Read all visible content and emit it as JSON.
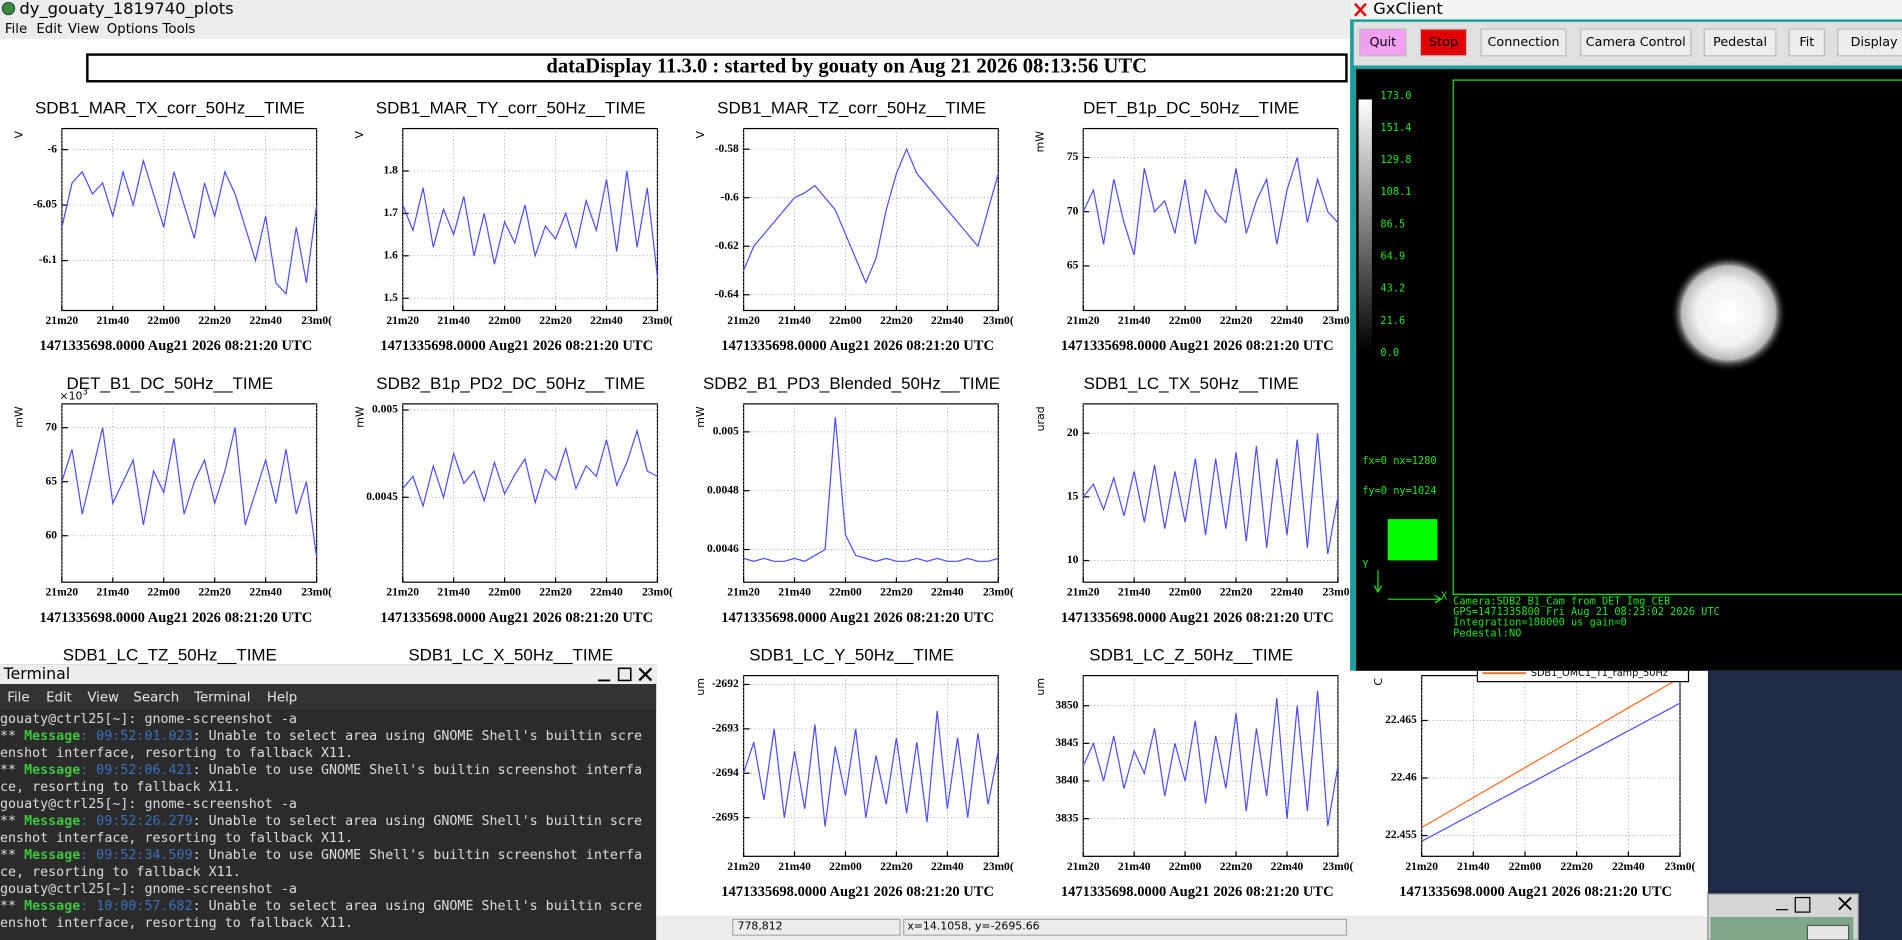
{
  "main": {
    "title": "dy_gouaty_1819740_plots",
    "menu": [
      "File",
      "Edit",
      "View",
      "Options",
      "Tools"
    ],
    "header": "dataDisplay 11.3.0 : started by gouaty on Aug 21 2026 08:13:56 UTC",
    "footer": "1471335698.0000 Aug21 2026 08:21:20 UTC",
    "xlim": [
      1280,
      1380
    ],
    "xticks": [
      {
        "value": 1280,
        "label": "21m20"
      },
      {
        "value": 1300,
        "label": "21m40"
      },
      {
        "value": 1320,
        "label": "22m00"
      },
      {
        "value": 1340,
        "label": "22m20"
      },
      {
        "value": 1360,
        "label": "22m40"
      },
      {
        "value": 1380,
        "label": "23m0("
      }
    ],
    "x": [
      1280,
      1284,
      1288,
      1292,
      1296,
      1300,
      1304,
      1308,
      1312,
      1316,
      1320,
      1324,
      1328,
      1332,
      1336,
      1340,
      1344,
      1348,
      1352,
      1356,
      1360,
      1364,
      1368,
      1372,
      1376,
      1380
    ],
    "plots": [
      {
        "title": "SDB1_MAR_TX_corr_50Hz__TIME",
        "ylabel": "V",
        "ylim": [
          -6.145,
          -5.981
        ],
        "yticks": [
          -6,
          -6.05,
          -6.1
        ],
        "color": "#4d4dff",
        "values": [
          -6.07,
          -6.03,
          -6.02,
          -6.04,
          -6.03,
          -6.06,
          -6.02,
          -6.05,
          -6.01,
          -6.04,
          -6.07,
          -6.02,
          -6.05,
          -6.08,
          -6.03,
          -6.06,
          -6.02,
          -6.04,
          -6.07,
          -6.1,
          -6.06,
          -6.12,
          -6.13,
          -6.07,
          -6.12,
          -6.05
        ]
      },
      {
        "title": "SDB1_MAR_TY_corr_50Hz__TIME",
        "ylabel": "V",
        "ylim": [
          1.471,
          1.9
        ],
        "yticks": [
          1.8,
          1.7,
          1.6,
          1.5
        ],
        "color": "#4d4dff",
        "values": [
          1.72,
          1.66,
          1.76,
          1.62,
          1.71,
          1.65,
          1.74,
          1.6,
          1.7,
          1.58,
          1.68,
          1.63,
          1.72,
          1.6,
          1.67,
          1.64,
          1.7,
          1.62,
          1.73,
          1.66,
          1.78,
          1.61,
          1.8,
          1.62,
          1.76,
          1.55
        ]
      },
      {
        "title": "SDB1_MAR_TZ_corr_50Hz__TIME",
        "ylabel": "V",
        "ylim": [
          -0.6465,
          -0.5715
        ],
        "yticks": [
          -0.58,
          -0.6,
          -0.62,
          -0.64
        ],
        "color": "#4d4dff",
        "values": [
          -0.63,
          -0.62,
          -0.615,
          -0.61,
          -0.605,
          -0.6,
          -0.598,
          -0.595,
          -0.6,
          -0.605,
          -0.615,
          -0.625,
          -0.635,
          -0.625,
          -0.605,
          -0.59,
          -0.58,
          -0.59,
          -0.595,
          -0.6,
          -0.605,
          -0.61,
          -0.615,
          -0.62,
          -0.605,
          -0.59
        ]
      },
      {
        "title": "DET_B1p_DC_50Hz__TIME",
        "ylabel": "mW",
        "ylim": [
          60.89,
          77.67
        ],
        "yticks": [
          75,
          70,
          65
        ],
        "color": "#4d4dff",
        "values": [
          70,
          72,
          67,
          73,
          69,
          66,
          74,
          70,
          71,
          68,
          73,
          67,
          72,
          70,
          69,
          74,
          68,
          71,
          73,
          67,
          72,
          75,
          69,
          73,
          70,
          69
        ]
      },
      {
        "title": "DET_B1_DC_50Hz__TIME",
        "ylabel": "mW",
        "multiplier": "×10",
        "exponent": "3",
        "ylim": [
          55.7,
          72.2
        ],
        "yticks": [
          70,
          65,
          60
        ],
        "color": "#4d4dff",
        "values": [
          65,
          68,
          62,
          66,
          70,
          63,
          65,
          67,
          61,
          66,
          64,
          69,
          62,
          65,
          67,
          63,
          66,
          70,
          61,
          64,
          67,
          63,
          68,
          62,
          65,
          58
        ]
      },
      {
        "title": "SDB2_B1p_PD2_DC_50Hz__TIME",
        "ylabel": "mW",
        "ylim": [
          0.004014,
          0.005035
        ],
        "yticks": [
          0.005,
          0.0045
        ],
        "color": "#4d4dff",
        "values": [
          0.00455,
          0.00462,
          0.00445,
          0.00468,
          0.0045,
          0.00475,
          0.00458,
          0.00465,
          0.00448,
          0.0047,
          0.00452,
          0.00463,
          0.00472,
          0.00447,
          0.00466,
          0.0046,
          0.00478,
          0.00455,
          0.00468,
          0.00462,
          0.00483,
          0.00457,
          0.0047,
          0.00488,
          0.00465,
          0.00462
        ]
      },
      {
        "title": "SDB2_B1_PD3_Blended_50Hz__TIME",
        "ylabel": "mW",
        "ylim": [
          0.004489,
          0.005095
        ],
        "yticks": [
          0.005,
          0.0048,
          0.0046
        ],
        "color": "#4d4dff",
        "values": [
          0.00457,
          0.00456,
          0.00457,
          0.00456,
          0.00456,
          0.00457,
          0.00456,
          0.00458,
          0.0046,
          0.00505,
          0.00465,
          0.00458,
          0.00457,
          0.00456,
          0.00457,
          0.00456,
          0.00456,
          0.00457,
          0.00456,
          0.00457,
          0.00456,
          0.00456,
          0.00457,
          0.00456,
          0.00456,
          0.00457
        ]
      },
      {
        "title": "SDB1_LC_TX_50Hz__TIME",
        "ylabel": "urad",
        "ylim": [
          8.3,
          22.3
        ],
        "yticks": [
          20,
          15,
          10
        ],
        "color": "#4d4dff",
        "values": [
          15,
          16,
          14,
          16.5,
          13.5,
          17,
          13,
          17.5,
          12.5,
          17,
          13,
          18,
          12,
          18,
          12.5,
          18.5,
          11.5,
          19,
          11,
          18,
          12,
          19.5,
          11,
          20,
          10.5,
          15
        ]
      },
      {
        "title": "SDB1_LC_TZ_50Hz__TIME"
      },
      {
        "title": "SDB1_LC_X_50Hz__TIME"
      },
      {
        "title": "SDB1_LC_Y_50Hz__TIME",
        "ylabel": "um",
        "ylim": [
          -2695.87,
          -2691.8
        ],
        "yticks": [
          -2692,
          -2693,
          -2694,
          -2695
        ],
        "color": "#4d4dff",
        "values": [
          -2694,
          -2693.3,
          -2694.6,
          -2693,
          -2695,
          -2693.5,
          -2694.8,
          -2692.9,
          -2695.2,
          -2693.4,
          -2694.5,
          -2693,
          -2695,
          -2693.6,
          -2694.7,
          -2693.2,
          -2694.9,
          -2693.3,
          -2695.1,
          -2692.6,
          -2694.8,
          -2693.2,
          -2695,
          -2693.1,
          -2694.7,
          -2693.5
        ]
      },
      {
        "title": "SDB1_LC_Z_50Hz__TIME",
        "ylabel": "um",
        "ylim": [
          3830,
          3854
        ],
        "yticks": [
          3850,
          3845,
          3840,
          3835
        ],
        "color": "#4d4dff",
        "values": [
          3842,
          3845,
          3840,
          3846,
          3839,
          3844,
          3841,
          3847,
          3838,
          3845,
          3840,
          3848,
          3837,
          3846,
          3839,
          3849,
          3836,
          3847,
          3838,
          3851,
          3835,
          3850,
          3836,
          3852,
          3834,
          3842
        ]
      },
      {
        "ylabel": "C",
        "ylim": [
          22.4532,
          22.4689
        ],
        "yticks": [
          22.465,
          22.46,
          22.455
        ],
        "x": [
          1280,
          1300,
          1320,
          1340,
          1360,
          1380
        ],
        "series": [
          {
            "color": "#4d4dff",
            "values": [
              22.4545,
              22.4569,
              22.4593,
              22.4617,
              22.4641,
              22.4665
            ]
          },
          {
            "name": "SDB1_OMC1_T1_ramp_50Hz",
            "color": "#ff6a1a",
            "values": [
              22.4557,
              22.4583,
              22.4609,
              22.4635,
              22.4661,
              22.4687
            ]
          }
        ]
      }
    ],
    "status": [
      "778,812",
      "x=14.1058, y=-2695.66"
    ]
  },
  "terminal": {
    "title": "Terminal",
    "menu": [
      "File",
      "Edit",
      "View",
      "Search",
      "Terminal",
      "Help"
    ],
    "lines": [
      {
        "text": "gouaty@ctrl25[~]: gnome-screenshot -a"
      },
      {
        "stars": "** ",
        "tag": "Message",
        "time": ": 09:52:01.023",
        "text": ": Unable to select area using GNOME Shell's builtin scre"
      },
      {
        "text": "enshot interface, resorting to fallback X11."
      },
      {
        "stars": "** ",
        "tag": "Message",
        "time": ": 09:52:06.421",
        "text": ": Unable to use GNOME Shell's builtin screenshot interfa"
      },
      {
        "text": "ce, resorting to fallback X11."
      },
      {
        "text": "gouaty@ctrl25[~]: gnome-screenshot -a"
      },
      {
        "stars": "** ",
        "tag": "Message",
        "time": ": 09:52:26.279",
        "text": ": Unable to select area using GNOME Shell's builtin scre"
      },
      {
        "text": "enshot interface, resorting to fallback X11."
      },
      {
        "stars": "** ",
        "tag": "Message",
        "time": ": 09:52:34.509",
        "text": ": Unable to use GNOME Shell's builtin screenshot interfa"
      },
      {
        "text": "ce, resorting to fallback X11."
      },
      {
        "text": "gouaty@ctrl25[~]: gnome-screenshot -a"
      },
      {
        "stars": "** ",
        "tag": "Message",
        "time": ": 10:00:57.682",
        "text": ": Unable to select area using GNOME Shell's builtin scre"
      },
      {
        "text": "enshot interface, resorting to fallback X11."
      }
    ]
  },
  "gx": {
    "title": "GxClient",
    "buttons": [
      "Quit",
      "Stop",
      "Connection",
      "Camera Control",
      "Pedestal",
      "Fit",
      "Display"
    ],
    "colorbar": [
      "173.0",
      "151.4",
      "129.8",
      "108.1",
      "86.5",
      "64.9",
      "43.2",
      "21.6",
      "0.0"
    ],
    "fx": "fx=0 nx=1280",
    "fy": "fy=0 ny=1024",
    "axis_y": "Y",
    "axis_x": "X",
    "info": [
      "Camera:SDB2_B1_Cam from DET_Img_CEB",
      "GPS=1471335800 Fri Aug 21 08:23:02 2026  UTC",
      "Integration=180000 us gain=0",
      "Pedestal:NO"
    ]
  }
}
